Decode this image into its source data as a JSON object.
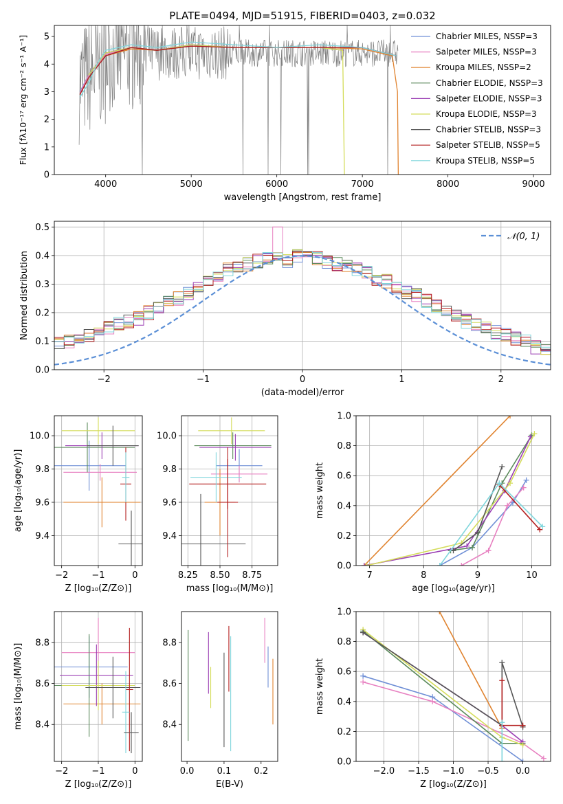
{
  "figure": {
    "title": "PLATE=0494, MJD=51915, FIBERID=0403, z=0.032"
  },
  "colors": {
    "grid": "#b0b0b0",
    "data": "#808080",
    "series": [
      "#6f8fd6",
      "#e77fc0",
      "#e0832f",
      "#5b8a5b",
      "#9b3fb4",
      "#d4dc5a",
      "#555555",
      "#b41f1f",
      "#7fd6dc"
    ]
  },
  "chart_data": [
    {
      "id": "spectrum",
      "type": "line",
      "title": "PLATE=0494, MJD=51915, FIBERID=0403, z=0.032",
      "xlabel": "wavelength [Angstrom, rest frame]",
      "ylabel": "Flux [fλ10⁻¹⁷ erg cm⁻² s⁻¹ A⁻¹]",
      "xlim": [
        3400,
        9200
      ],
      "ylim": [
        0,
        5.4
      ],
      "xticks": [
        4000,
        5000,
        6000,
        7000,
        8000,
        9000
      ],
      "yticks": [
        0,
        1,
        2,
        3,
        4,
        5
      ],
      "grid": false,
      "legend_position": "top-right",
      "series": [
        {
          "name": "Chabrier MILES, N_SSP=3",
          "x": [
            3700,
            3800,
            4000,
            4300,
            4600,
            5000,
            5500,
            6000,
            6500,
            7000,
            7400
          ],
          "y": [
            3.0,
            3.6,
            4.4,
            4.6,
            4.5,
            4.7,
            4.6,
            4.6,
            4.6,
            4.6,
            4.3
          ]
        },
        {
          "name": "Salpeter MILES, N_SSP=3",
          "x": [
            3700,
            3800,
            4000,
            4300,
            4600,
            5000,
            5500,
            6000,
            6500,
            7000,
            7400
          ],
          "y": [
            2.95,
            3.6,
            4.35,
            4.6,
            4.5,
            4.7,
            4.6,
            4.6,
            4.6,
            4.6,
            4.3
          ]
        },
        {
          "name": "Kroupa MILES, N_SSP=2",
          "x": [
            3700,
            3800,
            4000,
            4300,
            4600,
            5000,
            5500,
            6000,
            6500,
            7000,
            7350,
            7410,
            7420
          ],
          "y": [
            2.9,
            3.5,
            4.3,
            4.55,
            4.5,
            4.65,
            4.6,
            4.6,
            4.6,
            4.55,
            4.3,
            3.0,
            0
          ]
        },
        {
          "name": "Chabrier ELODIE, N_SSP=3",
          "x": [
            3800,
            4000,
            4300,
            4600,
            5000,
            5500,
            6000,
            6500,
            6780
          ],
          "y": [
            3.6,
            4.4,
            4.6,
            4.5,
            4.7,
            4.6,
            4.6,
            4.6,
            4.5
          ]
        },
        {
          "name": "Salpeter ELODIE, N_SSP=3",
          "x": [
            3800,
            4000,
            4300,
            4600,
            5000,
            5500,
            6000,
            6500,
            6780
          ],
          "y": [
            3.6,
            4.4,
            4.6,
            4.5,
            4.7,
            4.6,
            4.6,
            4.6,
            4.5
          ]
        },
        {
          "name": "Kroupa ELODIE, N_SSP=3",
          "x": [
            3800,
            4000,
            4300,
            4600,
            5000,
            5500,
            6000,
            6500,
            6770,
            6790
          ],
          "y": [
            3.6,
            4.4,
            4.6,
            4.5,
            4.7,
            4.6,
            4.6,
            4.6,
            4.5,
            0
          ]
        },
        {
          "name": "Chabrier STELIB, N_SSP=3",
          "x": [
            3700,
            3800,
            4000,
            4300,
            4600,
            5000,
            5500,
            6000,
            6500,
            7000,
            7400
          ],
          "y": [
            2.9,
            3.5,
            4.3,
            4.6,
            4.5,
            4.65,
            4.6,
            4.6,
            4.6,
            4.6,
            4.3
          ]
        },
        {
          "name": "Salpeter STELIB, N_SSP=5",
          "x": [
            3700,
            3800,
            4000,
            4300,
            4600,
            5000,
            5500,
            6000,
            6500,
            7000,
            7400
          ],
          "y": [
            2.9,
            3.5,
            4.3,
            4.6,
            4.5,
            4.65,
            4.6,
            4.6,
            4.6,
            4.6,
            4.3
          ]
        },
        {
          "name": "Kroupa STELIB, N_SSP=5",
          "x": [
            3700,
            3800,
            3900,
            4000,
            4300,
            4600,
            5000,
            5500,
            6000,
            6500,
            7000,
            7400
          ],
          "y": [
            2.8,
            3.3,
            4.0,
            4.5,
            4.7,
            4.6,
            4.8,
            4.7,
            4.6,
            4.7,
            4.6,
            4.3
          ]
        }
      ],
      "observed": {
        "x_start": 3690,
        "x_end": 7420,
        "y_median": 4.0,
        "y_min": 0,
        "y_max": 5.4
      }
    },
    {
      "id": "residuals",
      "type": "bar",
      "xlabel": "(data-model)/error",
      "ylabel": "Normed distribution",
      "xlim": [
        -2.5,
        2.5
      ],
      "ylim": [
        0,
        0.52
      ],
      "xticks": [
        -2,
        -1,
        0,
        1,
        2
      ],
      "yticks": [
        0,
        0.1,
        0.2,
        0.3,
        0.4,
        0.5
      ],
      "grid": true,
      "legend_position": "top-right",
      "legend_label": "𝒩(0, 1)",
      "gaussian": {
        "mu": 0,
        "sigma": 1
      },
      "bin_width": 0.1,
      "base_values": [
        0.03,
        0.04,
        0.05,
        0.06,
        0.08,
        0.09,
        0.1,
        0.11,
        0.12,
        0.13,
        0.15,
        0.16,
        0.17,
        0.18,
        0.2,
        0.22,
        0.24,
        0.25,
        0.27,
        0.29,
        0.31,
        0.33,
        0.35,
        0.36,
        0.37,
        0.38,
        0.39,
        0.4,
        0.38,
        0.4,
        0.4,
        0.39,
        0.38,
        0.37,
        0.36,
        0.35,
        0.34,
        0.32,
        0.31,
        0.29,
        0.27,
        0.26,
        0.24,
        0.22,
        0.2,
        0.19,
        0.17,
        0.16,
        0.15,
        0.13,
        0.12,
        0.11,
        0.1,
        0.08,
        0.07,
        0.06,
        0.05,
        0.04,
        0.04,
        0.03
      ]
    },
    {
      "id": "age-vs-Z",
      "type": "scatter",
      "xlabel": "Z [log₁₀(Z/Z⊙)]",
      "ylabel": "age  [log₁₀(age/yr)]",
      "xlim": [
        -2.2,
        0.2
      ],
      "ylim": [
        9.22,
        10.12
      ],
      "xticks": [
        -2,
        -1,
        0
      ],
      "yticks": [
        9.4,
        9.6,
        9.8,
        10.0
      ],
      "grid": true,
      "points": [
        {
          "x": -1.25,
          "y": 9.82,
          "xerr": 1.0,
          "yerr": 0.15,
          "color": 0
        },
        {
          "x": -0.95,
          "y": 9.78,
          "xerr": 1.0,
          "yerr": 0.05,
          "color": 1
        },
        {
          "x": -0.9,
          "y": 9.6,
          "xerr": 1.05,
          "yerr": 0.15,
          "color": 2
        },
        {
          "x": -1.3,
          "y": 9.93,
          "xerr": 1.3,
          "yerr": 0.15,
          "color": 3
        },
        {
          "x": -0.9,
          "y": 9.94,
          "xerr": 1.0,
          "yerr": 0.08,
          "color": 4
        },
        {
          "x": -1.0,
          "y": 10.03,
          "xerr": 1.0,
          "yerr": 0.08,
          "color": 5
        },
        {
          "x": -0.6,
          "y": 9.94,
          "xerr": 0.7,
          "yerr": 0.12,
          "color": 6
        },
        {
          "x": -0.25,
          "y": 9.71,
          "xerr": 0.15,
          "yerr": 0.22,
          "color": 7
        },
        {
          "x": -0.25,
          "y": 9.75,
          "xerr": 0.1,
          "yerr": 0.15,
          "color": 8
        },
        {
          "x": -0.1,
          "y": 9.35,
          "xerr": 0.35,
          "yerr": 0.2,
          "color": 6
        }
      ]
    },
    {
      "id": "age-vs-mass",
      "type": "scatter",
      "xlabel": "mass [log₁₀(M/M⊙)]",
      "ylabel": "",
      "xlim": [
        8.2,
        8.95
      ],
      "ylim": [
        9.22,
        10.12
      ],
      "xticks": [
        8.25,
        8.5,
        8.75
      ],
      "yticks": [
        9.4,
        9.6,
        9.8,
        10.0
      ],
      "grid": true,
      "points": [
        {
          "x": 8.65,
          "y": 9.82,
          "xerr": 0.18,
          "yerr": 0.1,
          "color": 0
        },
        {
          "x": 8.65,
          "y": 9.77,
          "xerr": 0.22,
          "yerr": 0.05,
          "color": 1
        },
        {
          "x": 8.5,
          "y": 9.6,
          "xerr": 0.12,
          "yerr": 0.2,
          "color": 2
        },
        {
          "x": 8.6,
          "y": 9.94,
          "xerr": 0.3,
          "yerr": 0.08,
          "color": 3
        },
        {
          "x": 8.62,
          "y": 9.93,
          "xerr": 0.28,
          "yerr": 0.08,
          "color": 4
        },
        {
          "x": 8.59,
          "y": 10.03,
          "xerr": 0.26,
          "yerr": 0.08,
          "color": 5
        },
        {
          "x": 8.35,
          "y": 9.35,
          "xerr": 0.35,
          "yerr": 0.3,
          "color": 6
        },
        {
          "x": 8.56,
          "y": 9.71,
          "xerr": 0.3,
          "yerr": 0.15,
          "color": 7
        },
        {
          "x": 8.47,
          "y": 9.75,
          "xerr": 0.2,
          "yerr": 0.15,
          "color": 8
        },
        {
          "x": 8.56,
          "y": 9.6,
          "xerr": 0.08,
          "yerr": 0.33,
          "color": 7
        }
      ]
    },
    {
      "id": "massweight-vs-age",
      "type": "line",
      "xlabel": "age  [log₁₀(age/yr)]",
      "ylabel": "mass weight",
      "xlim": [
        6.75,
        10.35
      ],
      "ylim": [
        0,
        1.0
      ],
      "xticks": [
        7,
        8,
        9,
        10
      ],
      "yticks": [
        0,
        0.2,
        0.4,
        0.6,
        0.8,
        1.0
      ],
      "grid": true,
      "series": [
        {
          "x": [
            8.3,
            8.9,
            9.65,
            9.9
          ],
          "y": [
            0.0,
            0.12,
            0.42,
            0.57
          ],
          "color": 0
        },
        {
          "x": [
            8.7,
            9.2,
            9.55,
            9.85
          ],
          "y": [
            0.0,
            0.1,
            0.4,
            0.52
          ],
          "color": 1
        },
        {
          "x": [
            6.9,
            9.6
          ],
          "y": [
            0.0,
            1.0
          ],
          "color": 2
        },
        {
          "x": [
            8.5,
            8.9,
            9.45,
            10.0
          ],
          "y": [
            0.1,
            0.12,
            0.55,
            0.87
          ],
          "color": 3
        },
        {
          "x": [
            6.9,
            8.8,
            9.5,
            9.98
          ],
          "y": [
            0.0,
            0.13,
            0.5,
            0.86
          ],
          "color": 4
        },
        {
          "x": [
            6.95,
            8.7,
            9.6,
            10.05
          ],
          "y": [
            0.0,
            0.15,
            0.55,
            0.88
          ],
          "color": 5
        },
        {
          "x": [
            8.55,
            9.0,
            9.45
          ],
          "y": [
            0.1,
            0.22,
            0.66
          ],
          "color": 6
        },
        {
          "x": [
            9.4,
            10.15
          ],
          "y": [
            0.54,
            0.24
          ],
          "color": 7
        },
        {
          "x": [
            8.3,
            9.4,
            10.2
          ],
          "y": [
            0.0,
            0.55,
            0.26
          ],
          "color": 8
        }
      ]
    },
    {
      "id": "mass-vs-Z",
      "type": "scatter",
      "xlabel": "Z [log₁₀(Z/Z⊙)]",
      "ylabel": "mass [log₁₀(M/M⊙)]",
      "xlim": [
        -2.2,
        0.2
      ],
      "ylim": [
        8.22,
        8.95
      ],
      "xticks": [
        -2,
        -1,
        0
      ],
      "yticks": [
        8.4,
        8.6,
        8.8
      ],
      "grid": true,
      "points": [
        {
          "x": -1.25,
          "y": 8.68,
          "xerr": 1.05,
          "yerr": 0.15,
          "color": 0
        },
        {
          "x": -1.0,
          "y": 8.75,
          "xerr": 1.0,
          "yerr": 0.17,
          "color": 1
        },
        {
          "x": -0.9,
          "y": 8.5,
          "xerr": 1.05,
          "yerr": 0.1,
          "color": 2
        },
        {
          "x": -1.25,
          "y": 8.59,
          "xerr": 1.0,
          "yerr": 0.25,
          "color": 3
        },
        {
          "x": -1.05,
          "y": 8.64,
          "xerr": 1.0,
          "yerr": 0.15,
          "color": 4
        },
        {
          "x": -1.0,
          "y": 8.59,
          "xerr": 1.0,
          "yerr": 0.12,
          "color": 5
        },
        {
          "x": -0.6,
          "y": 8.58,
          "xerr": 0.75,
          "yerr": 0.15,
          "color": 6
        },
        {
          "x": -0.15,
          "y": 8.57,
          "xerr": 0.1,
          "yerr": 0.3,
          "color": 7
        },
        {
          "x": -0.25,
          "y": 8.46,
          "xerr": 0.1,
          "yerr": 0.2,
          "color": 8
        },
        {
          "x": -0.1,
          "y": 8.36,
          "xerr": 0.2,
          "yerr": 0.1,
          "color": 6
        }
      ]
    },
    {
      "id": "mass-vs-EBV",
      "type": "scatter",
      "xlabel": "E(B-V)",
      "ylabel": "",
      "xlim": [
        -0.015,
        0.245
      ],
      "ylim": [
        8.22,
        8.95
      ],
      "xticks": [
        0.0,
        0.1,
        0.2
      ],
      "yticks": [
        8.4,
        8.6,
        8.8
      ],
      "grid": false,
      "points": [
        {
          "x": 0.219,
          "y": 8.68,
          "yerr": 0.1,
          "color": 0
        },
        {
          "x": 0.21,
          "y": 8.81,
          "yerr": 0.11,
          "color": 1
        },
        {
          "x": 0.232,
          "y": 8.56,
          "yerr": 0.16,
          "color": 2
        },
        {
          "x": 0.003,
          "y": 8.59,
          "yerr": 0.27,
          "color": 3
        },
        {
          "x": 0.058,
          "y": 8.7,
          "yerr": 0.15,
          "color": 4
        },
        {
          "x": 0.064,
          "y": 8.58,
          "yerr": 0.1,
          "color": 5
        },
        {
          "x": 0.1,
          "y": 8.52,
          "yerr": 0.23,
          "color": 6
        },
        {
          "x": 0.113,
          "y": 8.72,
          "yerr": 0.16,
          "color": 7
        },
        {
          "x": 0.118,
          "y": 8.55,
          "yerr": 0.28,
          "color": 8
        }
      ]
    },
    {
      "id": "massweight-vs-Z",
      "type": "line",
      "xlabel": "Z [log₁₀(Z/Z⊙)]",
      "ylabel": "mass weight",
      "xlim": [
        -2.4,
        0.4
      ],
      "ylim": [
        0,
        1.0
      ],
      "xticks": [
        -2.0,
        -1.5,
        -1.0,
        -0.5,
        0.0
      ],
      "yticks": [
        0,
        0.2,
        0.4,
        0.6,
        0.8,
        1.0
      ],
      "grid": true,
      "series": [
        {
          "x": [
            -2.3,
            -1.3,
            0.0
          ],
          "y": [
            0.57,
            0.43,
            0.0
          ],
          "color": 0
        },
        {
          "x": [
            -2.3,
            -1.3,
            0.0,
            0.3
          ],
          "y": [
            0.53,
            0.4,
            0.12,
            0.02
          ],
          "color": 1
        },
        {
          "x": [
            -1.2,
            -0.3
          ],
          "y": [
            1.0,
            0.22
          ],
          "color": 2
        },
        {
          "x": [
            -2.3,
            -0.3,
            0.0
          ],
          "y": [
            0.87,
            0.12,
            0.12
          ],
          "color": 3
        },
        {
          "x": [
            -2.3,
            -0.3,
            0.0
          ],
          "y": [
            0.86,
            0.24,
            0.13
          ],
          "color": 4
        },
        {
          "x": [
            -2.3,
            -0.3,
            0.0
          ],
          "y": [
            0.88,
            0.16,
            0.11
          ],
          "color": 5
        },
        {
          "x": [
            -2.3,
            -0.3,
            -0.3,
            0.0
          ],
          "y": [
            0.86,
            0.24,
            0.66,
            0.23
          ],
          "color": 6
        },
        {
          "x": [
            -0.3,
            -0.3,
            0.0
          ],
          "y": [
            0.54,
            0.24,
            0.24
          ],
          "color": 7
        },
        {
          "x": [
            -0.3,
            -0.3
          ],
          "y": [
            0.26,
            0.0
          ],
          "color": 8
        }
      ]
    }
  ]
}
